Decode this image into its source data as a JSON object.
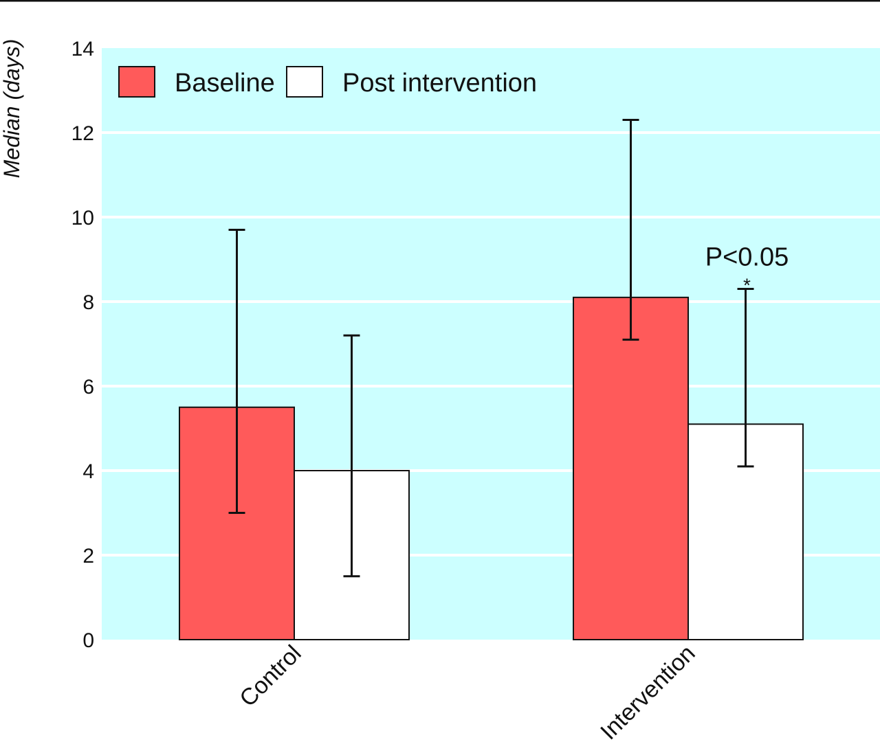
{
  "chart_data": {
    "type": "bar",
    "ylabel": "Median (days)",
    "xlabel": "",
    "ylim": [
      0,
      14
    ],
    "yticks": [
      0,
      2,
      4,
      6,
      8,
      10,
      12,
      14
    ],
    "grid": "horizontal",
    "legend_position": "top-left",
    "categories": [
      "Control",
      "Intervention"
    ],
    "series": [
      {
        "name": "Baseline",
        "color": "#ff5a5a",
        "values": [
          5.5,
          8.1
        ],
        "error_low": [
          3.0,
          7.1
        ],
        "error_high": [
          9.7,
          12.3
        ]
      },
      {
        "name": "Post intervention",
        "color": "#ffffff",
        "values": [
          4.0,
          5.1
        ],
        "error_low": [
          1.5,
          4.1
        ],
        "error_high": [
          7.2,
          8.3
        ]
      }
    ],
    "annotations": [
      {
        "text": "P<0.05",
        "marker": "*",
        "category": "Intervention",
        "series": "Post intervention"
      }
    ],
    "colors": {
      "background": "#ccffff",
      "grid": "#ffffff",
      "axis": "#111111"
    }
  }
}
